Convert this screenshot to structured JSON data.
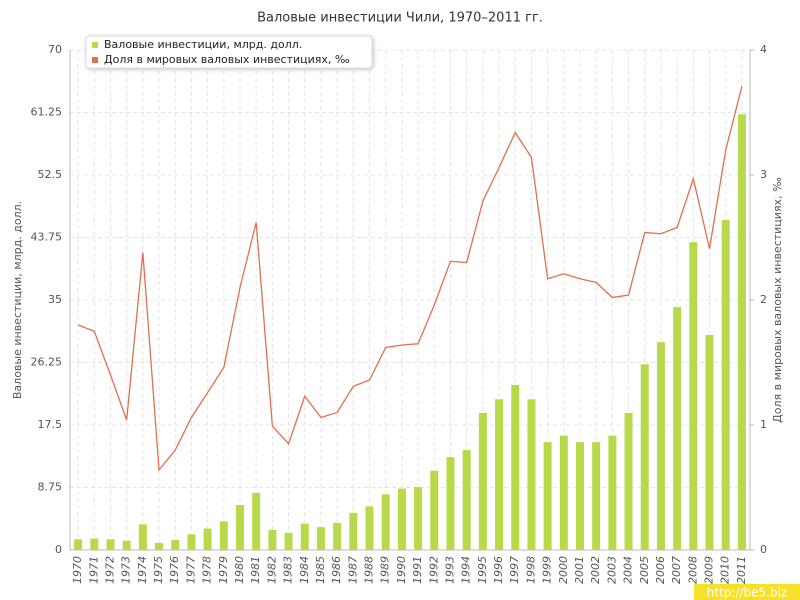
{
  "chart_data": {
    "type": "bar-line",
    "title": "Валовые инвестиции Чили, 1970–2011 гг.",
    "y_label": "Валовые инвестиции, млрд. долл.",
    "y2_label": "Доля в мировых валовых инвестициях, ‰",
    "watermark": "http://be5.biz",
    "categories": [
      "1970",
      "1971",
      "1972",
      "1973",
      "1974",
      "1975",
      "1976",
      "1977",
      "1978",
      "1979",
      "1980",
      "1981",
      "1982",
      "1983",
      "1984",
      "1985",
      "1986",
      "1987",
      "1988",
      "1989",
      "1990",
      "1991",
      "1992",
      "1993",
      "1994",
      "1995",
      "1996",
      "1997",
      "1998",
      "1999",
      "2000",
      "2001",
      "2002",
      "2003",
      "2004",
      "2005",
      "2006",
      "2007",
      "2008",
      "2009",
      "2010",
      "2011"
    ],
    "series": [
      {
        "name": "Валовые инвестиции, млрд. долл.",
        "type": "bar",
        "color": "#b8d94a",
        "values": [
          1.5,
          1.6,
          1.5,
          1.3,
          3.6,
          1.0,
          1.4,
          2.2,
          3.0,
          4.0,
          6.3,
          8.0,
          2.8,
          2.4,
          3.7,
          3.2,
          3.8,
          5.2,
          6.1,
          7.8,
          8.6,
          8.8,
          11.1,
          13.0,
          14.0,
          19.2,
          21.1,
          23.1,
          21.1,
          15.1,
          16.0,
          15.1,
          15.1,
          16.0,
          19.2,
          26.0,
          29.1,
          34.0,
          43.1,
          30.1,
          46.2,
          61.0
        ]
      },
      {
        "name": "Доля в мировых валовых инвестициях, ‰",
        "type": "line",
        "color": "#e07050",
        "axis": "y2",
        "values": [
          1.8,
          1.75,
          1.4,
          1.04,
          2.38,
          0.64,
          0.8,
          1.06,
          1.26,
          1.46,
          2.1,
          2.62,
          0.99,
          0.85,
          1.23,
          1.06,
          1.1,
          1.31,
          1.36,
          1.62,
          1.64,
          1.65,
          1.96,
          2.31,
          2.3,
          2.79,
          3.06,
          3.34,
          3.14,
          2.17,
          2.21,
          2.17,
          2.14,
          2.02,
          2.04,
          2.54,
          2.53,
          2.58,
          2.97,
          2.41,
          3.2,
          3.71
        ]
      }
    ],
    "ylim": [
      0,
      70
    ],
    "yticks": [
      0,
      8.75,
      17.5,
      26.25,
      35,
      43.75,
      52.5,
      61.25,
      70
    ],
    "y2lim": [
      0,
      4
    ],
    "y2ticks": [
      0,
      1,
      2,
      3,
      4
    ],
    "grid": true,
    "legend": "top-left"
  }
}
